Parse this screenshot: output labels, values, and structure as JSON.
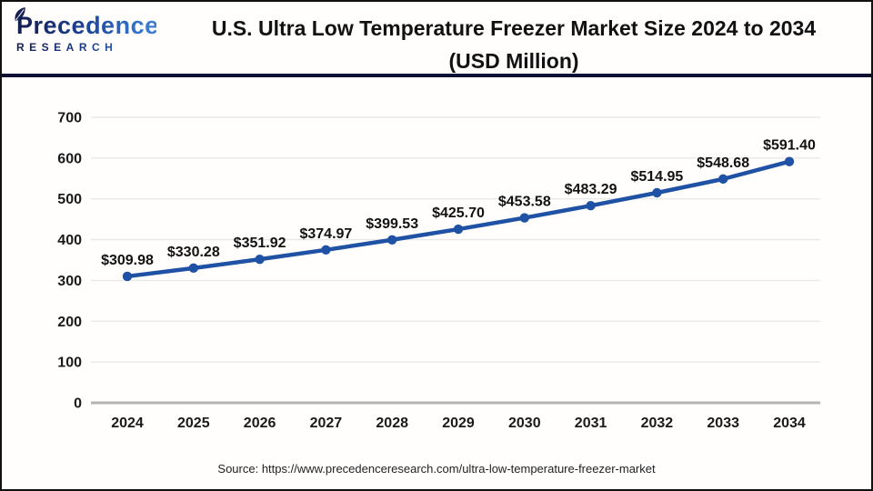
{
  "header": {
    "logo": {
      "brand": "Precedence",
      "sub": "RESEARCH"
    },
    "title_line1": "U.S. Ultra Low Temperature Freezer Market Size 2024 to 2034",
    "title_line2": "(USD Million)"
  },
  "chart_data": {
    "type": "line",
    "title": "U.S. Ultra Low Temperature Freezer Market Size 2024 to 2034 (USD Million)",
    "categories": [
      "2024",
      "2025",
      "2026",
      "2027",
      "2028",
      "2029",
      "2030",
      "2031",
      "2032",
      "2033",
      "2034"
    ],
    "values": [
      309.98,
      330.28,
      351.92,
      374.97,
      399.53,
      425.7,
      453.58,
      483.29,
      514.95,
      548.68,
      591.4
    ],
    "data_labels": [
      "$309.98",
      "$330.28",
      "$351.92",
      "$374.97",
      "$399.53",
      "$425.70",
      "$453.58",
      "$483.29",
      "$514.95",
      "$548.68",
      "$591.40"
    ],
    "xlabel": "",
    "ylabel": "",
    "ylim": [
      0,
      700
    ],
    "ytick_step": 100,
    "ytick_labels": [
      "0",
      "100",
      "200",
      "300",
      "400",
      "500",
      "600",
      "700"
    ],
    "grid": true,
    "legend": "none",
    "line_color": "#1f51a4",
    "marker_color": "#1f51a4",
    "grid_color": "#e8e8e8",
    "axis_color": "#b3b3b3",
    "label_color": "#121212"
  },
  "footer": {
    "source": "Source: https://www.precedenceresearch.com/ultra-low-temperature-freezer-market"
  }
}
